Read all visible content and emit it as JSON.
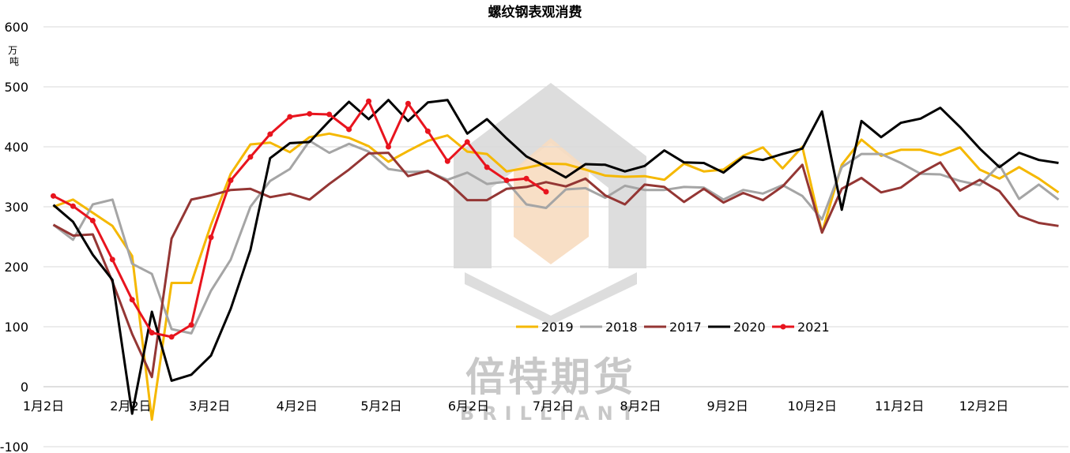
{
  "chart_data": {
    "type": "line",
    "title": "螺纹钢表观消费",
    "ylabel": "万\n吨",
    "ylim": [
      -100,
      600
    ],
    "yticks": [
      -100,
      0,
      100,
      200,
      300,
      400,
      500,
      600
    ],
    "xticks": [
      "1月2日",
      "2月2日",
      "3月2日",
      "4月2日",
      "5月2日",
      "6月2日",
      "7月2日",
      "8月2日",
      "9月2日",
      "10月2日",
      "11月2日",
      "12月2日"
    ],
    "grid": true,
    "legend": "center",
    "watermark": {
      "text": "倍特期货",
      "sub": "BRILLIANT"
    },
    "series": [
      {
        "name": "2019",
        "color": "#f5b800",
        "marker": false,
        "values": [
          300,
          312,
          290,
          268,
          218,
          -55,
          173,
          173,
          270,
          355,
          404,
          407,
          391,
          416,
          422,
          415,
          401,
          375,
          393,
          410,
          419,
          392,
          388,
          359,
          365,
          372,
          371,
          362,
          352,
          350,
          351,
          345,
          372,
          359,
          362,
          385,
          399,
          364,
          400,
          257,
          370,
          412,
          385,
          395,
          395,
          386,
          399,
          362,
          347,
          366,
          347,
          324
        ]
      },
      {
        "name": "2018",
        "color": "#a5a5a5",
        "marker": false,
        "values": [
          270,
          245,
          304,
          312,
          205,
          188,
          96,
          89,
          160,
          212,
          300,
          343,
          363,
          410,
          390,
          405,
          392,
          363,
          358,
          359,
          345,
          357,
          338,
          342,
          304,
          298,
          329,
          331,
          315,
          335,
          328,
          328,
          333,
          332,
          312,
          328,
          322,
          336,
          318,
          279,
          366,
          388,
          388,
          373,
          355,
          354,
          343,
          336,
          370,
          313,
          337,
          312
        ]
      },
      {
        "name": "2017",
        "color": "#943634",
        "marker": false,
        "values": [
          270,
          252,
          254,
          175,
          88,
          16,
          247,
          312,
          319,
          328,
          330,
          316,
          322,
          312,
          338,
          362,
          389,
          390,
          351,
          360,
          342,
          311,
          311,
          330,
          333,
          341,
          334,
          347,
          319,
          304,
          337,
          333,
          308,
          330,
          307,
          323,
          311,
          334,
          370,
          257,
          330,
          348,
          324,
          332,
          356,
          374,
          327,
          345,
          326,
          285,
          273,
          268
        ]
      },
      {
        "name": "2020",
        "color": "#000000",
        "marker": false,
        "values": [
          303,
          275,
          220,
          178,
          -45,
          125,
          10,
          20,
          52,
          130,
          228,
          381,
          406,
          408,
          443,
          475,
          446,
          478,
          443,
          474,
          478,
          422,
          446,
          414,
          384,
          367,
          349,
          371,
          370,
          359,
          368,
          394,
          374,
          373,
          357,
          383,
          378,
          388,
          397,
          459,
          295,
          443,
          416,
          440,
          447,
          465,
          433,
          397,
          366,
          390,
          378,
          373
        ]
      },
      {
        "name": "2021",
        "color": "#e8141e",
        "marker": true,
        "values": [
          318,
          301,
          277,
          212,
          145,
          90,
          83,
          103,
          249,
          344,
          383,
          421,
          450,
          455,
          454,
          429,
          476,
          400,
          472,
          426,
          376,
          408,
          366,
          344,
          347,
          325
        ]
      }
    ]
  }
}
